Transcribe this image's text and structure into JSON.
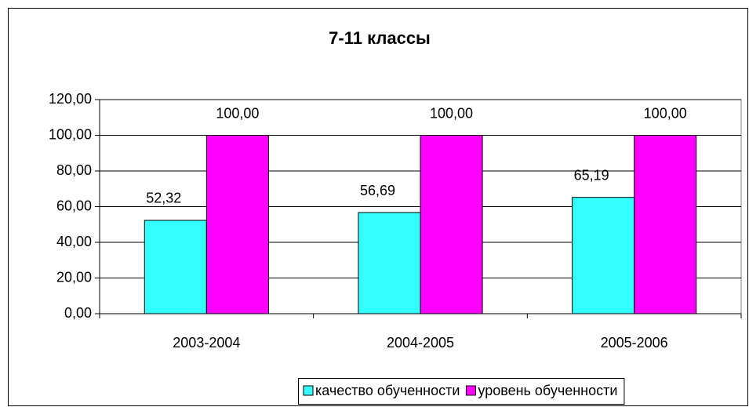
{
  "chart_data": {
    "type": "bar",
    "title": "7-11 классы",
    "categories": [
      "2003-2004",
      "2004-2005",
      "2005-2006"
    ],
    "series": [
      {
        "name": "качество обученности",
        "color": "#33ffff",
        "values": [
          52.32,
          56.69,
          65.19
        ],
        "value_labels": [
          "52,32",
          "56,69",
          "65,19"
        ]
      },
      {
        "name": "уровень обученности",
        "color": "#ff00ff",
        "values": [
          100,
          100,
          100
        ],
        "value_labels": [
          "100,00",
          "100,00",
          "100,00"
        ]
      }
    ],
    "ylim": [
      0,
      120
    ],
    "yticks": [
      {
        "value": 0,
        "label": "0,00"
      },
      {
        "value": 20,
        "label": "20,00"
      },
      {
        "value": 40,
        "label": "40,00"
      },
      {
        "value": 60,
        "label": "60,00"
      },
      {
        "value": 80,
        "label": "80,00"
      },
      {
        "value": 100,
        "label": "100,00"
      },
      {
        "value": 120,
        "label": "120,00"
      }
    ],
    "grid": true,
    "legend": "bottom"
  }
}
